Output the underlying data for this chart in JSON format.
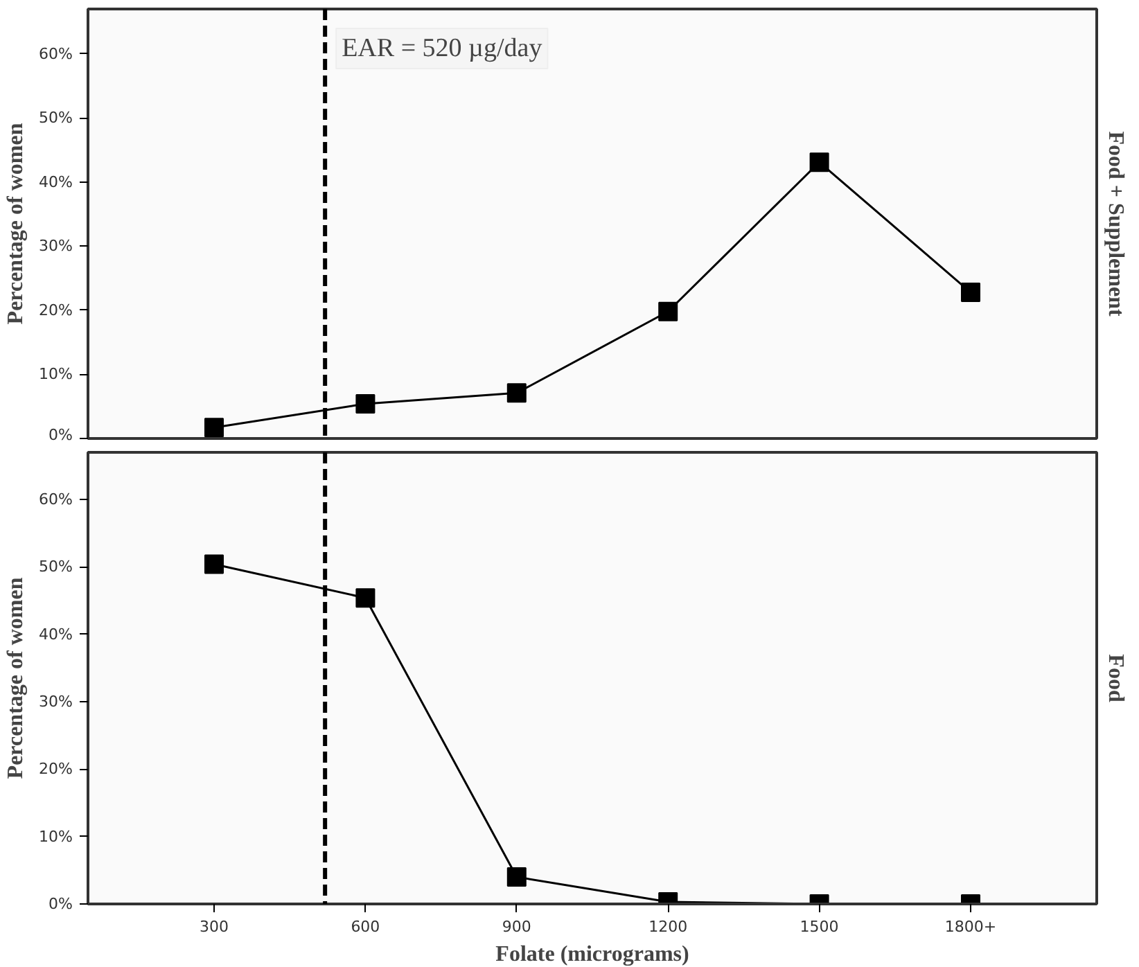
{
  "chart_data": [
    {
      "type": "line",
      "title": "Food + Supplement",
      "ylabel": "Percentage of women",
      "x": [
        300,
        600,
        900,
        1200,
        1500,
        1800
      ],
      "series": [
        {
          "color": "#000000",
          "values": [
            1.7,
            5.4,
            7.1,
            19.8,
            43.1,
            22.8
          ]
        }
      ],
      "xlim": [
        50,
        2050
      ],
      "ylim": [
        0,
        67
      ],
      "yticks": [
        {
          "value": 0,
          "label": "0%"
        },
        {
          "value": 10,
          "label": "10%"
        },
        {
          "value": 20,
          "label": "20%"
        },
        {
          "value": 30,
          "label": "30%"
        },
        {
          "value": 40,
          "label": "40%"
        },
        {
          "value": 50,
          "label": "50%"
        },
        {
          "value": 60,
          "label": "60%"
        }
      ],
      "ref_lines": [
        {
          "axis": "x",
          "value": 520,
          "label": "EAR = 520 µg/day",
          "color": "#000000",
          "line_style": "dashed"
        }
      ],
      "tick_labels": "y",
      "marker": "square",
      "line_style": "solid",
      "grid": false
    },
    {
      "type": "line",
      "title": "Food",
      "ylabel": "Percentage of women",
      "xlabel": "Folate (micrograms)",
      "x": [
        300,
        600,
        900,
        1200,
        1500,
        1800
      ],
      "series": [
        {
          "color": "#000000",
          "values": [
            50.4,
            45.4,
            4.0,
            0.3,
            0,
            0
          ]
        }
      ],
      "xlim": [
        50,
        2050
      ],
      "xticks": [
        300,
        600,
        900,
        1200,
        1500,
        {
          "value": 1800,
          "label": "1800+"
        }
      ],
      "ylim": [
        0,
        67
      ],
      "yticks": [
        {
          "value": 0,
          "label": "0%"
        },
        {
          "value": 10,
          "label": "10%"
        },
        {
          "value": 20,
          "label": "20%"
        },
        {
          "value": 30,
          "label": "30%"
        },
        {
          "value": 40,
          "label": "40%"
        },
        {
          "value": 50,
          "label": "50%"
        },
        {
          "value": 60,
          "label": "60%"
        }
      ],
      "ref_lines": [
        {
          "axis": "x",
          "value": 520,
          "color": "#000000",
          "line_style": "dashed"
        }
      ],
      "marker": "square",
      "line_style": "solid",
      "grid": false
    }
  ]
}
